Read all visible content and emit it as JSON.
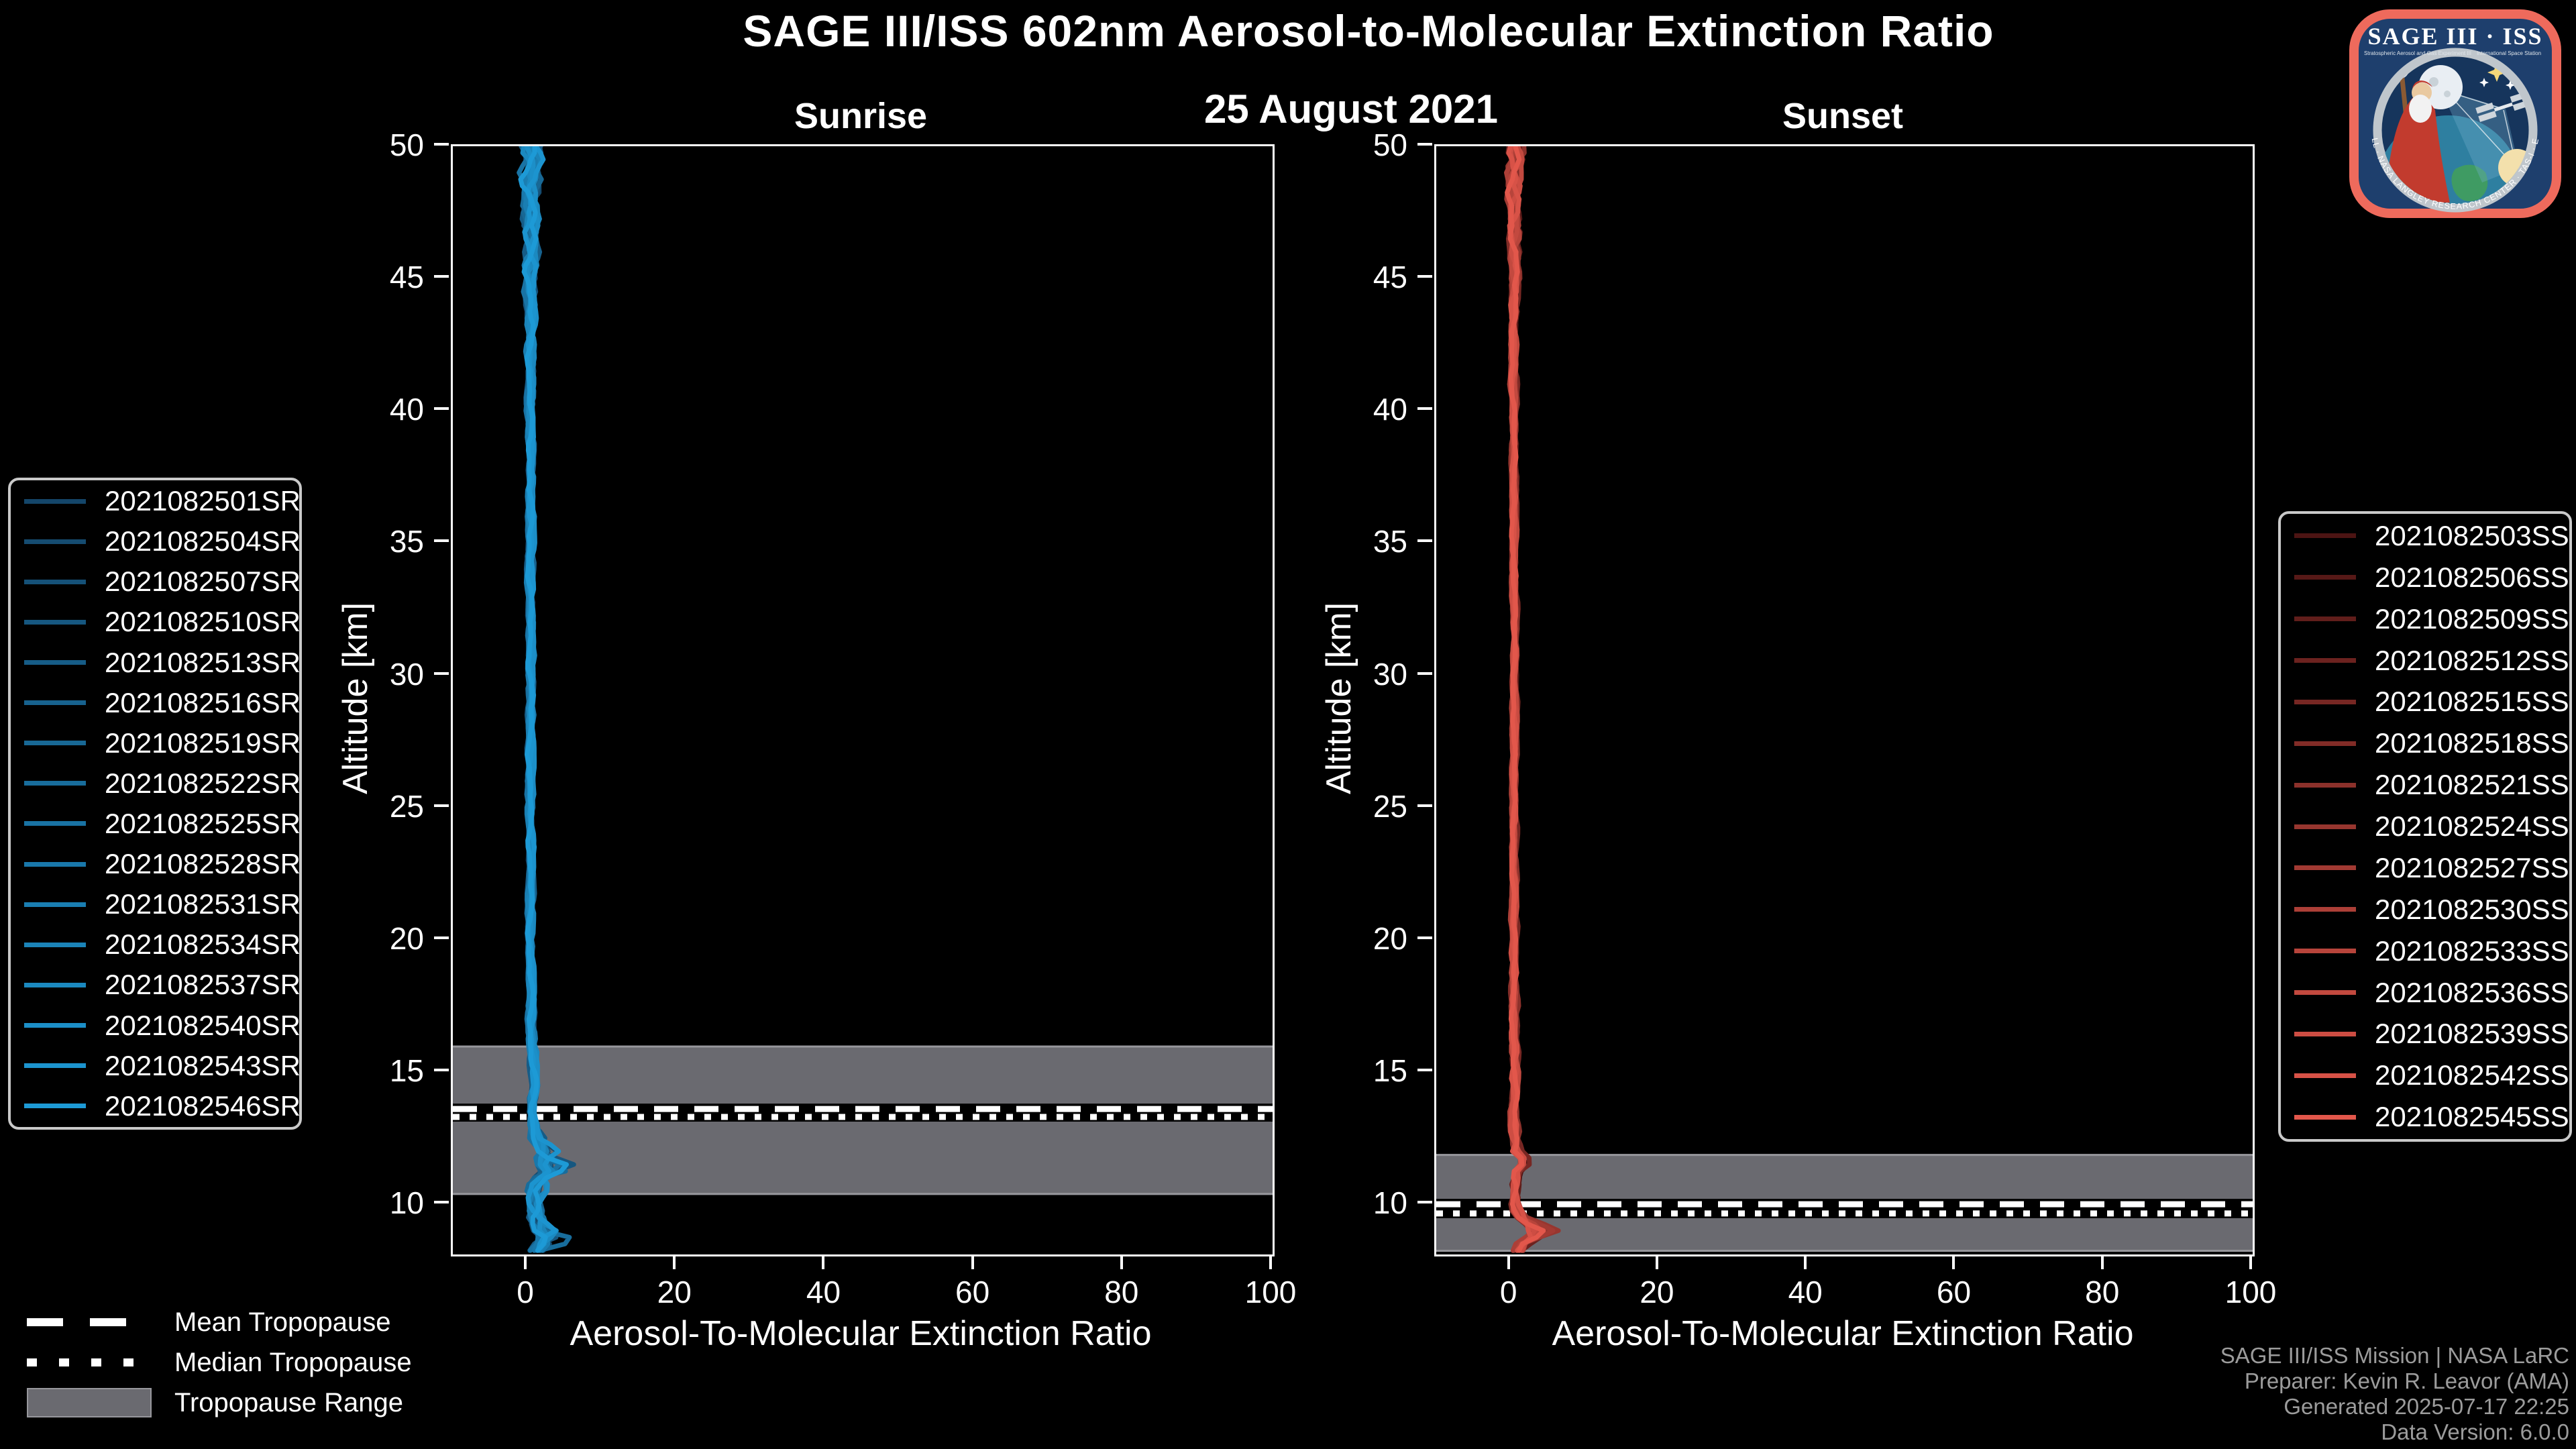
{
  "header": {
    "title": "SAGE III/ISS 602nm Aerosol-to-Molecular Extinction Ratio",
    "date": "25 August 2021"
  },
  "tropopause_legend": {
    "mean_label": "Mean Tropopause",
    "median_label": "Median Tropopause",
    "range_label": "Tropopause Range",
    "range_color": "#6a6a70",
    "range_edge_color": "#97979c",
    "line_color": "#ffffff"
  },
  "footer": {
    "lines": [
      "SAGE III/ISS Mission | NASA LaRC",
      "Preparer: Kevin R. Leavor (AMA)",
      "Generated 2025-07-17 22:25",
      "Data Version: 6.0.0"
    ]
  },
  "logo": {
    "title": "SAGE III · ISS",
    "subtitle_left": "Stratospheric Aerosol and Gas Experiment III",
    "subtitle_right": "International Space Station",
    "ring_text": "BALL · NASA LANGLEY RESEARCH CENTER · TAS-I · ESA",
    "border_color": "#ee6a5c",
    "field_color": "#1e3f6d"
  },
  "chart_data": [
    {
      "type": "line",
      "title": "Sunrise",
      "xlabel": "Aerosol-To-Molecular Extinction Ratio",
      "ylabel": "Altitude [km]",
      "xlim": [
        -10,
        100
      ],
      "ylim": [
        8.1,
        50
      ],
      "xticks": [
        0,
        20,
        40,
        60,
        80,
        100
      ],
      "yticks": [
        10,
        15,
        20,
        25,
        30,
        35,
        40,
        45,
        50
      ],
      "grid": false,
      "legend_position": "outside-left",
      "n_profiles": 16,
      "series_labels": [
        "2021082501SR",
        "2021082504SR",
        "2021082507SR",
        "2021082510SR",
        "2021082513SR",
        "2021082516SR",
        "2021082519SR",
        "2021082522SR",
        "2021082525SR",
        "2021082528SR",
        "2021082531SR",
        "2021082534SR",
        "2021082537SR",
        "2021082540SR",
        "2021082543SR",
        "2021082546SR"
      ],
      "line_color_start": "#14466a",
      "line_color_end": "#1d9ad6",
      "mean_profile": {
        "altitude_km": [
          50,
          48,
          46,
          44,
          42,
          40,
          38,
          36,
          34,
          32,
          30,
          28,
          26,
          24,
          22,
          20,
          18,
          16.5,
          15.5,
          14.5,
          13.5,
          12.5,
          12,
          11.6,
          11.2,
          10.8,
          10.4,
          10,
          9.6,
          9.2,
          8.8,
          8.5,
          8.2
        ],
        "ratio": [
          0.6,
          0.5,
          0.6,
          0.4,
          0.5,
          0.4,
          0.5,
          0.5,
          0.4,
          0.5,
          0.5,
          0.5,
          0.4,
          0.5,
          0.5,
          0.4,
          0.5,
          0.6,
          0.8,
          1.0,
          0.6,
          1.2,
          2.2,
          1.5,
          2.6,
          1.2,
          0.9,
          0.8,
          1.0,
          1.3,
          2.4,
          2.0,
          1.2
        ]
      },
      "jitter_amplitude": {
        "altitude_km": [
          50,
          47,
          44,
          40,
          30,
          20,
          16,
          13,
          12,
          11,
          10,
          9,
          8.2
        ],
        "amplitude": [
          1.6,
          1.2,
          0.7,
          0.45,
          0.4,
          0.4,
          0.5,
          0.5,
          0.9,
          1.2,
          0.9,
          1.3,
          1.0
        ]
      },
      "right_excursion": {
        "altitude_km": [
          50,
          13,
          12.2,
          11.6,
          11,
          10.4,
          10,
          9.4,
          8.8,
          8.2
        ],
        "amplitude": [
          0,
          0,
          1.5,
          3.0,
          2.5,
          1.0,
          0.5,
          1.5,
          3.5,
          1.5
        ]
      },
      "tropopause": {
        "mean_km": 13.6,
        "median_km": 13.3,
        "range_km": [
          10.35,
          16.0
        ]
      }
    },
    {
      "type": "line",
      "title": "Sunset",
      "xlabel": "Aerosol-To-Molecular Extinction Ratio",
      "ylabel": "Altitude [km]",
      "xlim": [
        -10,
        100
      ],
      "ylim": [
        8.1,
        50
      ],
      "xticks": [
        0,
        20,
        40,
        60,
        80,
        100
      ],
      "yticks": [
        10,
        15,
        20,
        25,
        30,
        35,
        40,
        45,
        50
      ],
      "grid": false,
      "legend_position": "outside-right",
      "n_profiles": 15,
      "series_labels": [
        "2021082503SS",
        "2021082506SS",
        "2021082509SS",
        "2021082512SS",
        "2021082515SS",
        "2021082518SS",
        "2021082521SS",
        "2021082524SS",
        "2021082527SS",
        "2021082530SS",
        "2021082533SS",
        "2021082536SS",
        "2021082539SS",
        "2021082542SS",
        "2021082545SS"
      ],
      "line_color_start": "#4c1413",
      "line_color_end": "#e2574b",
      "mean_profile": {
        "altitude_km": [
          50,
          48,
          46,
          44,
          42,
          40,
          35,
          30,
          25,
          20,
          15,
          13,
          12,
          11.6,
          11.2,
          10.6,
          10,
          9.6,
          9.2,
          8.9,
          8.6,
          8.2
        ],
        "ratio": [
          0.7,
          0.5,
          0.6,
          0.5,
          0.4,
          0.5,
          0.5,
          0.6,
          0.5,
          0.5,
          0.6,
          0.5,
          0.8,
          1.8,
          0.9,
          0.6,
          0.7,
          1.2,
          2.8,
          3.5,
          1.5,
          0.8
        ]
      },
      "jitter_amplitude": {
        "altitude_km": [
          50,
          47,
          44,
          40,
          30,
          20,
          12,
          10,
          9,
          8.2
        ],
        "amplitude": [
          1.2,
          0.9,
          0.5,
          0.35,
          0.3,
          0.35,
          0.6,
          0.7,
          1.0,
          0.8
        ]
      },
      "right_excursion": {
        "altitude_km": [
          50,
          12,
          11.6,
          11.2,
          10,
          9.4,
          9,
          8.6,
          8.2
        ],
        "amplitude": [
          0,
          0,
          1.2,
          0.5,
          0.3,
          1.5,
          2.5,
          1.2,
          0.5
        ]
      },
      "tropopause": {
        "mean_km": 10.0,
        "median_km": 9.65,
        "range_km": [
          8.2,
          11.9
        ]
      }
    }
  ]
}
